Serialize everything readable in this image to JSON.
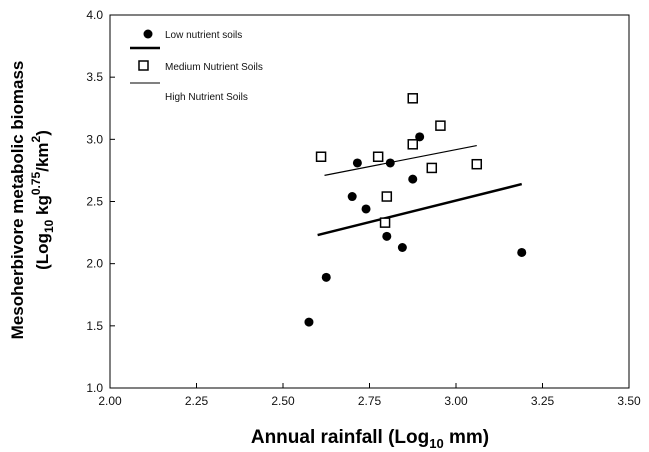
{
  "chart_data": {
    "type": "scatter",
    "title": "",
    "xlabel": {
      "main": "Annual rainfall (Log",
      "sub": "10",
      "tail": " mm)"
    },
    "ylabel": {
      "line1": "Mesoherbivore metabolic biomass",
      "line2_a": "(Log",
      "line2_sub": "10",
      "line2_b": " kg",
      "line2_sup": "0.75",
      "line2_c": "/km",
      "line2_sup2": "2",
      "line2_d": ")"
    },
    "xlim": [
      2.0,
      3.5
    ],
    "ylim": [
      1.0,
      4.0
    ],
    "x_ticks": [
      "2.00",
      "2.25",
      "2.50",
      "2.75",
      "3.00",
      "3.25",
      "3.50"
    ],
    "y_ticks": [
      "1.0",
      "1.5",
      "2.0",
      "2.5",
      "3.0",
      "3.5",
      "4.0"
    ],
    "grid": false,
    "legend_position": "top-left",
    "series": [
      {
        "name": "Low nutrient soils",
        "marker": "filled-circle",
        "color": "#000000",
        "points": [
          [
            2.575,
            1.53
          ],
          [
            2.625,
            1.89
          ],
          [
            2.7,
            2.54
          ],
          [
            2.715,
            2.81
          ],
          [
            2.74,
            2.44
          ],
          [
            2.8,
            2.22
          ],
          [
            2.81,
            2.81
          ],
          [
            2.845,
            2.13
          ],
          [
            2.875,
            2.68
          ],
          [
            2.895,
            3.02
          ],
          [
            3.19,
            2.09
          ]
        ],
        "fit": {
          "x": [
            2.6,
            3.19
          ],
          "y": [
            2.23,
            2.64
          ],
          "stroke": "thick"
        }
      },
      {
        "name": "Medium Nutrient Soils",
        "marker": "open-square",
        "color": "#000000",
        "points": [
          [
            2.61,
            2.86
          ],
          [
            2.775,
            2.86
          ],
          [
            2.795,
            2.33
          ],
          [
            2.8,
            2.54
          ],
          [
            2.875,
            2.96
          ],
          [
            2.875,
            3.33
          ],
          [
            2.93,
            2.77
          ],
          [
            2.955,
            3.11
          ],
          [
            3.06,
            2.8
          ]
        ]
      },
      {
        "name": "High Nutrient Soils",
        "marker": "none",
        "color": "#000000",
        "fit": {
          "x": [
            2.62,
            3.06
          ],
          "y": [
            2.71,
            2.95
          ],
          "stroke": "thin"
        }
      }
    ]
  }
}
